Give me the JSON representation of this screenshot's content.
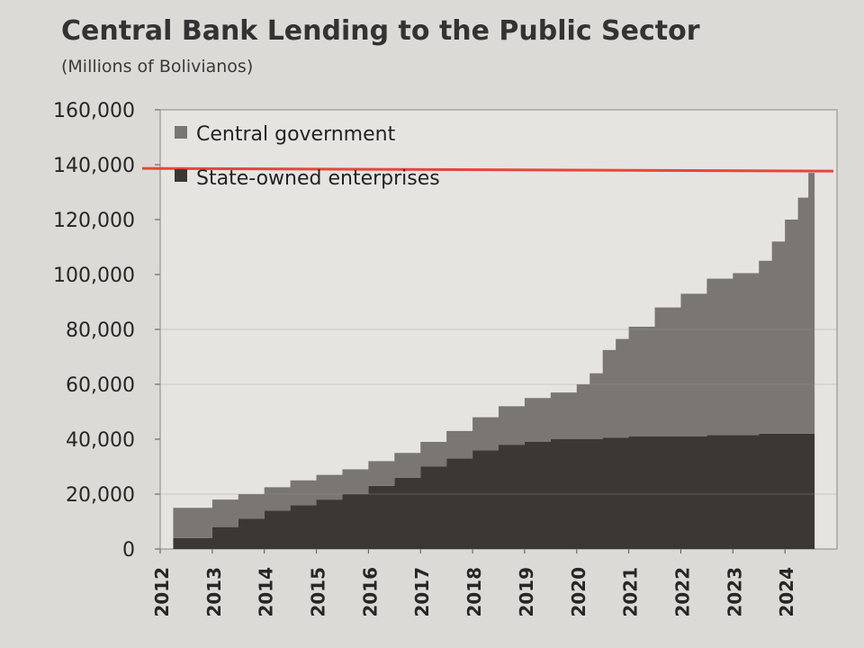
{
  "chart_data": {
    "type": "area",
    "title": "Central Bank Lending to the Public Sector",
    "subtitle": "(Millions of Bolivianos)",
    "xlabel": "",
    "ylabel": "",
    "ylim": [
      0,
      160000
    ],
    "xlim": [
      2012.0,
      2025.0
    ],
    "y_ticks": [
      "0",
      "20,000",
      "40,000",
      "60,000",
      "80,000",
      "100,000",
      "120,000",
      "140,000",
      "160,000"
    ],
    "y_tick_values": [
      0,
      20000,
      40000,
      60000,
      80000,
      100000,
      120000,
      140000,
      160000
    ],
    "x_ticks": [
      "2012",
      "2013",
      "2014",
      "2015",
      "2016",
      "2017",
      "2018",
      "2019",
      "2020",
      "2021",
      "2022",
      "2023",
      "2024"
    ],
    "stacked": true,
    "legend_position": "top-left",
    "reference_line": {
      "y": 138000,
      "color": "#e8453c",
      "label": ""
    },
    "x": [
      2012.25,
      2013.0,
      2013.5,
      2014.0,
      2014.5,
      2015.0,
      2015.5,
      2016.0,
      2016.5,
      2017.0,
      2017.5,
      2018.0,
      2018.5,
      2019.0,
      2019.5,
      2020.0,
      2020.25,
      2020.5,
      2020.75,
      2021.0,
      2021.5,
      2022.0,
      2022.5,
      2023.0,
      2023.5,
      2023.75,
      2024.0,
      2024.25,
      2024.45
    ],
    "series": [
      {
        "name": "State-owned enterprises",
        "color": "#3b3735",
        "values": [
          4000,
          8000,
          11000,
          14000,
          16000,
          18000,
          20000,
          23000,
          26000,
          30000,
          33000,
          36000,
          38000,
          39000,
          40000,
          40000,
          40000,
          40500,
          40500,
          41000,
          41000,
          41000,
          41500,
          41500,
          42000,
          42000,
          42000,
          42000,
          42000
        ]
      },
      {
        "name": "Central government",
        "color": "#7a7673",
        "values": [
          11000,
          10000,
          9000,
          8500,
          9000,
          9000,
          9000,
          9000,
          9000,
          9000,
          10000,
          12000,
          14000,
          16000,
          17000,
          20000,
          24000,
          32000,
          36000,
          40000,
          47000,
          52000,
          57000,
          59000,
          63000,
          70000,
          78000,
          86000,
          95000
        ]
      }
    ]
  }
}
